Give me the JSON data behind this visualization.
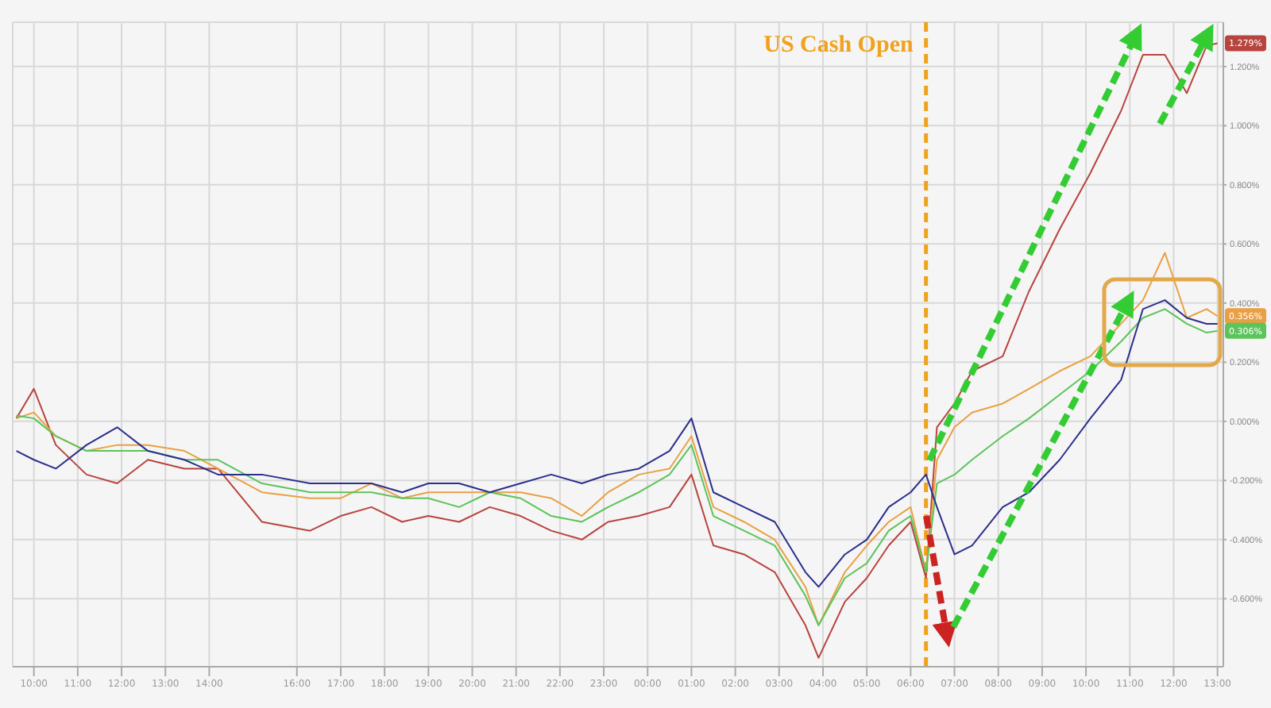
{
  "chart_data": {
    "type": "line",
    "x": [
      "--01-11T09:36",
      "--01-11T10:00",
      "--01-11T10:30",
      "--01-11T11:12",
      "--01-11T11:54",
      "--01-11T12:36",
      "--01-11T13:26",
      "--01-11T14:12",
      "--01-11T15:12",
      "--01-11T16:18",
      "--01-11T17:00",
      "--01-11T17:42",
      "--01-11T18:24",
      "--01-11T19:00",
      "--01-11T19:42",
      "--01-11T20:24",
      "--01-11T21:06",
      "--01-11T21:48",
      "--01-11T22:30",
      "--01-11T23:06",
      "--01-11T23:48",
      "--01-12T00:30",
      "--01-12T01:00",
      "--01-12T01:30",
      "--01-12T02:12",
      "--01-12T02:54",
      "--01-12T03:36",
      "--01-12T03:54",
      "--01-12T04:30",
      "--01-12T05:00",
      "--01-12T05:30",
      "--01-12T06:00",
      "--01-12T06:21",
      "--01-12T06:36",
      "--01-12T07:00",
      "--01-12T07:24",
      "--01-12T08:06",
      "--01-12T08:42",
      "--01-12T09:24",
      "--01-12T10:06",
      "--01-12T10:48",
      "--01-12T11:18",
      "--01-12T11:48",
      "--01-12T12:18",
      "--01-12T12:45",
      "--01-12T13:00"
    ],
    "series": [
      {
        "color": "#b8443f",
        "values": [
          0.01,
          0.11,
          -0.08,
          -0.18,
          -0.21,
          -0.13,
          -0.16,
          -0.16,
          -0.34,
          -0.37,
          -0.32,
          -0.29,
          -0.34,
          -0.32,
          -0.34,
          -0.29,
          -0.32,
          -0.37,
          -0.4,
          -0.34,
          -0.32,
          -0.29,
          -0.18,
          -0.42,
          -0.45,
          -0.51,
          -0.69,
          -0.8,
          -0.61,
          -0.53,
          -0.42,
          -0.34,
          -0.53,
          -0.02,
          0.06,
          0.17,
          0.22,
          0.44,
          0.65,
          0.84,
          1.05,
          1.24,
          1.24,
          1.11,
          1.27,
          1.279
        ],
        "value_labels": [
          null,
          null,
          null,
          null,
          null,
          null,
          null,
          null,
          null,
          null,
          null,
          null,
          null,
          null,
          null,
          null,
          null,
          null,
          null,
          null,
          null,
          null,
          null,
          null,
          null,
          null,
          null,
          null,
          null,
          null,
          null,
          null,
          null,
          null,
          null,
          null,
          null,
          null,
          null,
          null,
          null,
          null,
          null,
          null,
          null,
          "1.279%"
        ]
      },
      {
        "color": "#e9a044",
        "values": [
          0.01,
          0.03,
          -0.05,
          -0.1,
          -0.08,
          -0.08,
          -0.1,
          -0.16,
          -0.24,
          -0.26,
          -0.26,
          -0.21,
          -0.26,
          -0.24,
          -0.24,
          -0.24,
          -0.24,
          -0.26,
          -0.32,
          -0.24,
          -0.18,
          -0.16,
          -0.05,
          -0.29,
          -0.34,
          -0.4,
          -0.56,
          -0.69,
          -0.51,
          -0.42,
          -0.34,
          -0.29,
          -0.51,
          -0.13,
          -0.02,
          0.03,
          0.06,
          0.11,
          0.17,
          0.22,
          0.33,
          0.41,
          0.57,
          0.35,
          0.38,
          0.356
        ],
        "value_labels": [
          null,
          null,
          null,
          null,
          null,
          null,
          null,
          null,
          null,
          null,
          null,
          null,
          null,
          null,
          null,
          null,
          null,
          null,
          null,
          null,
          null,
          null,
          null,
          null,
          null,
          null,
          null,
          null,
          null,
          null,
          null,
          null,
          null,
          null,
          null,
          null,
          null,
          null,
          null,
          null,
          null,
          null,
          null,
          null,
          null,
          "0.356%"
        ]
      },
      {
        "color": "#5cc45a",
        "values": [
          0.02,
          0.01,
          -0.05,
          -0.1,
          -0.1,
          -0.1,
          -0.13,
          -0.13,
          -0.21,
          -0.24,
          -0.24,
          -0.24,
          -0.26,
          -0.26,
          -0.29,
          -0.24,
          -0.26,
          -0.32,
          -0.34,
          -0.29,
          -0.24,
          -0.18,
          -0.08,
          -0.32,
          -0.37,
          -0.42,
          -0.59,
          -0.69,
          -0.53,
          -0.48,
          -0.37,
          -0.32,
          -0.51,
          -0.21,
          -0.18,
          -0.13,
          -0.05,
          0.01,
          0.09,
          0.17,
          0.27,
          0.35,
          0.38,
          0.33,
          0.3,
          0.306
        ],
        "value_labels": [
          null,
          null,
          null,
          null,
          null,
          null,
          null,
          null,
          null,
          null,
          null,
          null,
          null,
          null,
          null,
          null,
          null,
          null,
          null,
          null,
          null,
          null,
          null,
          null,
          null,
          null,
          null,
          null,
          null,
          null,
          null,
          null,
          null,
          null,
          null,
          null,
          null,
          null,
          null,
          null,
          null,
          null,
          null,
          null,
          null,
          "0.306%"
        ]
      },
      {
        "color": "#2b2f8c",
        "values": [
          -0.1,
          -0.13,
          -0.16,
          -0.08,
          -0.02,
          -0.1,
          -0.13,
          -0.18,
          -0.18,
          -0.21,
          -0.21,
          -0.21,
          -0.24,
          -0.21,
          -0.21,
          -0.24,
          -0.21,
          -0.18,
          -0.21,
          -0.18,
          -0.16,
          -0.1,
          0.01,
          -0.24,
          -0.29,
          -0.34,
          -0.51,
          -0.56,
          -0.45,
          -0.4,
          -0.29,
          -0.24,
          -0.18,
          -0.29,
          -0.45,
          -0.42,
          -0.29,
          -0.24,
          -0.13,
          0.01,
          0.14,
          0.38,
          0.41,
          0.35,
          0.33,
          0.33
        ]
      }
    ],
    "xlim": [
      "--01-11T09:31",
      "--01-12T13:08"
    ],
    "xticks": [
      {
        "value": "--01-11T10:00",
        "label": "10:00"
      },
      {
        "value": "--01-11T11:00",
        "label": "11:00"
      },
      {
        "value": "--01-11T12:00",
        "label": "12:00"
      },
      {
        "value": "--01-11T13:00",
        "label": "13:00"
      },
      {
        "value": "--01-11T14:00",
        "label": "14:00"
      },
      {
        "value": "--01-11T16:00",
        "label": "16:00"
      },
      {
        "value": "--01-11T17:00",
        "label": "17:00"
      },
      {
        "value": "--01-11T18:00",
        "label": "18:00"
      },
      {
        "value": "--01-11T19:00",
        "label": "19:00"
      },
      {
        "value": "--01-11T20:00",
        "label": "20:00"
      },
      {
        "value": "--01-11T21:00",
        "label": "21:00"
      },
      {
        "value": "--01-11T22:00",
        "label": "22:00"
      },
      {
        "value": "--01-11T23:00",
        "label": "23:00"
      },
      {
        "value": "--01-12T00:00",
        "label": "00:00"
      },
      {
        "value": "--01-12T01:00",
        "label": "01:00"
      },
      {
        "value": "--01-12T02:00",
        "label": "02:00"
      },
      {
        "value": "--01-12T03:00",
        "label": "03:00"
      },
      {
        "value": "--01-12T04:00",
        "label": "04:00"
      },
      {
        "value": "--01-12T05:00",
        "label": "05:00"
      },
      {
        "value": "--01-12T06:00",
        "label": "06:00"
      },
      {
        "value": "--01-12T07:00",
        "label": "07:00"
      },
      {
        "value": "--01-12T08:00",
        "label": "08:00"
      },
      {
        "value": "--01-12T09:00",
        "label": "09:00"
      },
      {
        "value": "--01-12T10:00",
        "label": "10:00"
      },
      {
        "value": "--01-12T11:00",
        "label": "11:00"
      },
      {
        "value": "--01-12T12:00",
        "label": "12:00"
      },
      {
        "value": "--01-12T13:00",
        "label": "13:00"
      }
    ],
    "ylim": [
      -0.83,
      1.35
    ],
    "yticks": [
      {
        "value": -0.6,
        "label": "-0.600%"
      },
      {
        "value": -0.4,
        "label": "-0.400%"
      },
      {
        "value": -0.2,
        "label": "-0.200%"
      },
      {
        "value": 0,
        "label": "0.000%"
      },
      {
        "value": 0.2,
        "label": "0.200%"
      },
      {
        "value": 0.4,
        "label": "0.400%"
      },
      {
        "value": 0.6,
        "label": "0.600%"
      },
      {
        "value": 0.8,
        "label": "0.800%"
      },
      {
        "value": 1,
        "label": "1.000%"
      },
      {
        "value": 1.2,
        "label": "1.200%"
      }
    ],
    "grid": true,
    "ref_lines": [
      {
        "axis": "x",
        "value": "--01-12T06:21",
        "label": "US Cash Open",
        "color": "#f0a21c",
        "line_style": "dashed"
      }
    ]
  }
}
